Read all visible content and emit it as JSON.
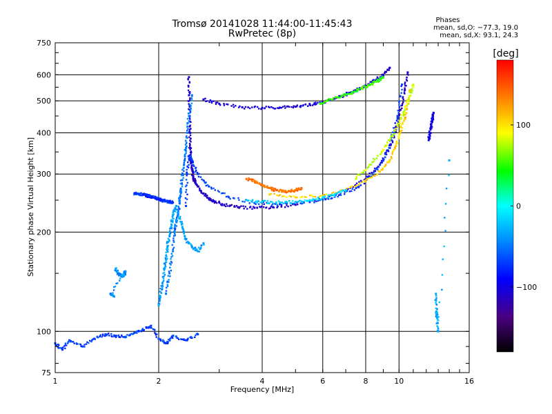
{
  "chart_data": {
    "type": "scatter",
    "title": "Tromsø 20141028 11:44:00-11:45:43",
    "subtitle": "RwPretec (8p)",
    "xlabel": "Frequency [MHz]",
    "ylabel": "Stationary phase Virtual Height [km]",
    "x_scale": "log",
    "y_scale": "log",
    "xlim": [
      1,
      16
    ],
    "ylim": [
      75,
      750
    ],
    "x_ticks": [
      1,
      2,
      4,
      6,
      8,
      10,
      16
    ],
    "x_tick_labels": [
      "1",
      "2",
      "4",
      "6",
      "8",
      "10",
      "16"
    ],
    "y_ticks": [
      75,
      100,
      200,
      300,
      400,
      500,
      600,
      750
    ],
    "y_tick_labels": [
      "75",
      "100",
      "200",
      "300",
      "400",
      "500",
      "600",
      "750"
    ],
    "grid": true,
    "stats": {
      "heading": "Phases",
      "line_o": "mean, sd,O: −77.3, 19.0",
      "line_x": "mean, sd,X:  93.1, 24.3"
    },
    "colorbar": {
      "label": "[deg]",
      "ticks": [
        100,
        0,
        -100
      ],
      "tick_labels": [
        "100",
        "0",
        "−100"
      ],
      "range": [
        -180,
        180
      ],
      "colormap": "rainbow"
    },
    "series": [
      {
        "x": [
          2.45,
          2.45,
          2.46,
          2.47,
          2.47,
          2.48,
          2.5,
          2.52,
          2.55,
          2.6,
          2.7,
          2.8,
          2.9,
          3.1,
          3.4,
          3.8,
          4.3,
          5.0,
          6.0,
          7.0,
          8.0,
          8.8,
          9.4,
          9.8,
          10.1,
          10.4,
          10.6
        ],
        "y": [
          590,
          520,
          450,
          400,
          360,
          330,
          310,
          295,
          285,
          275,
          262,
          252,
          248,
          242,
          238,
          237,
          238,
          242,
          252,
          266,
          290,
          320,
          360,
          410,
          470,
          540,
          610
        ],
        "phase": -110
      },
      {
        "x": [
          2.4,
          2.42,
          2.45,
          2.5,
          2.6,
          2.8,
          3.2,
          3.8,
          4.5,
          5.5,
          6.5,
          7.5,
          8.3,
          9.0,
          9.5,
          9.9,
          10.2
        ],
        "y": [
          240,
          300,
          340,
          330,
          300,
          275,
          255,
          245,
          243,
          247,
          256,
          272,
          295,
          330,
          380,
          450,
          560
        ],
        "phase": -70
      },
      {
        "x": [
          2.1,
          2.15,
          2.2,
          2.22,
          2.25,
          2.28,
          2.3,
          2.32,
          2.35,
          2.38,
          2.4,
          2.42,
          2.45,
          2.5
        ],
        "y": [
          130,
          150,
          175,
          200,
          215,
          230,
          250,
          270,
          300,
          330,
          360,
          400,
          450,
          520
        ],
        "phase": -50
      },
      {
        "x": [
          2.0,
          2.02,
          2.05,
          2.08,
          2.1,
          2.12,
          2.15,
          2.18,
          2.2,
          2.25,
          2.3,
          2.35,
          2.4,
          2.5,
          2.6,
          2.7
        ],
        "y": [
          120,
          128,
          140,
          155,
          165,
          180,
          195,
          210,
          225,
          240,
          220,
          205,
          190,
          180,
          175,
          185
        ],
        "phase": -35
      },
      {
        "x": [
          1.0,
          1.05,
          1.1,
          1.2,
          1.3,
          1.4,
          1.5,
          1.6,
          1.7,
          1.8,
          1.9,
          2.0,
          2.1,
          2.2,
          2.4,
          2.6
        ],
        "y": [
          92,
          88,
          94,
          90,
          95,
          98,
          97,
          96,
          99,
          101,
          104,
          95,
          92,
          97,
          94,
          98
        ],
        "phase": -70
      },
      {
        "x": [
          1.7,
          1.75,
          1.8,
          1.85,
          1.9,
          1.95,
          2.0,
          2.05,
          2.1,
          2.15,
          2.2
        ],
        "y": [
          262,
          261,
          260,
          258,
          256,
          254,
          252,
          250,
          248,
          247,
          246
        ],
        "phase": -75
      },
      {
        "x": [
          2.7,
          3.0,
          3.5,
          4.0,
          4.5,
          5.0,
          5.5,
          6.0,
          6.5,
          7.0,
          7.5,
          8.0,
          8.5,
          9.0,
          9.4
        ],
        "y": [
          505,
          490,
          478,
          476,
          477,
          480,
          487,
          496,
          508,
          522,
          538,
          556,
          576,
          600,
          630
        ],
        "phase": -105
      },
      {
        "x": [
          5.9,
          6.3,
          6.8,
          7.3,
          7.8,
          8.2,
          8.6,
          9.0
        ],
        "y": [
          490,
          505,
          518,
          530,
          545,
          558,
          572,
          588
        ],
        "phase": 50
      },
      {
        "x": [
          4.2,
          5.0,
          6.0,
          7.0,
          8.0,
          8.8,
          9.4,
          9.8,
          10.1,
          10.4,
          10.6,
          10.8
        ],
        "y": [
          260,
          255,
          258,
          268,
          285,
          305,
          330,
          365,
          405,
          445,
          490,
          540
        ],
        "phase": 105
      },
      {
        "x": [
          7.5,
          8.2,
          8.9,
          9.4,
          9.9,
          10.3,
          10.7,
          11.0
        ],
        "y": [
          290,
          320,
          350,
          380,
          420,
          460,
          510,
          560
        ],
        "phase": 80
      },
      {
        "x": [
          3.6,
          3.8,
          4.0,
          4.2,
          4.4,
          4.6,
          4.8,
          5.0,
          5.2
        ],
        "y": [
          290,
          285,
          278,
          272,
          268,
          266,
          266,
          268,
          272
        ],
        "phase": 140
      },
      {
        "x": [
          3.6,
          4.0,
          4.5,
          5.0,
          5.5,
          6.0,
          6.5,
          7.0
        ],
        "y": [
          250,
          247,
          246,
          247,
          250,
          254,
          260,
          268
        ],
        "phase": -15
      },
      {
        "x": [
          12.2,
          12.3,
          12.4,
          12.5,
          12.6
        ],
        "y": [
          380,
          400,
          420,
          440,
          460
        ],
        "phase": -100
      },
      {
        "x": [
          1.5,
          1.52,
          1.55,
          1.58,
          1.6,
          1.45,
          1.48
        ],
        "y": [
          155,
          150,
          148,
          147,
          152,
          130,
          128
        ],
        "phase": -40
      },
      {
        "x": [
          12.8,
          12.85,
          12.9,
          13.0,
          14.0
        ],
        "y": [
          130,
          115,
          110,
          100,
          330
        ],
        "phase": -30
      }
    ]
  }
}
